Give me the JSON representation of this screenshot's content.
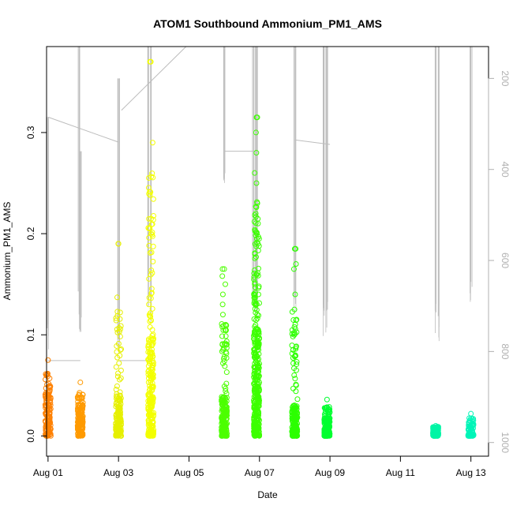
{
  "chart_data": {
    "type": "scatter",
    "title": "ATOM1 Southbound Ammonium_PM1_AMS",
    "xlabel": "Date",
    "ylabel": "Ammonium_PM1_AMS",
    "x_unit": "date (Aug 2016 flight days)",
    "xlim": [
      "2016-07-31T23:00",
      "2016-08-13T12:00"
    ],
    "ylim": [
      -0.02,
      0.385
    ],
    "x_ticks": [
      {
        "date": "2016-08-01",
        "label": "Aug 01"
      },
      {
        "date": "2016-08-03",
        "label": "Aug 03"
      },
      {
        "date": "2016-08-05",
        "label": "Aug 05"
      },
      {
        "date": "2016-08-07",
        "label": "Aug 07"
      },
      {
        "date": "2016-08-09",
        "label": "Aug 09"
      },
      {
        "date": "2016-08-11",
        "label": "Aug 11"
      },
      {
        "date": "2016-08-13",
        "label": "Aug 13"
      }
    ],
    "y_ticks": [
      {
        "value": 0.0,
        "label": "0.0"
      },
      {
        "value": 0.1,
        "label": "0.1"
      },
      {
        "value": 0.2,
        "label": "0.2"
      },
      {
        "value": 0.3,
        "label": "0.3"
      }
    ],
    "secondary_axis": {
      "side": "right",
      "description": "pressure (inverted)",
      "lim": [
        1030,
        130
      ],
      "ticks": [
        {
          "value": 200,
          "label": "200"
        },
        {
          "value": 400,
          "label": "400"
        },
        {
          "value": 600,
          "label": "600"
        },
        {
          "value": 800,
          "label": "800"
        },
        {
          "value": 1000,
          "label": "1000"
        }
      ],
      "color": "#b0b0b0"
    },
    "grid": false,
    "clusters": [
      {
        "x": "2016-08-01T00:00",
        "color": "#ff8000",
        "max": 0.075,
        "dense_to": 0.045,
        "n": 140
      },
      {
        "x": "2016-08-01T22:00",
        "color": "#ff9a00",
        "max": 0.053,
        "dense_to": 0.03,
        "n": 160
      },
      {
        "x": "2016-08-03T00:00",
        "color": "#e6f000",
        "max": 0.19,
        "dense_to": 0.04,
        "n": 160,
        "outliers": [
          0.19,
          0.137,
          0.085,
          0.072
        ]
      },
      {
        "x": "2016-08-03T22:00",
        "color": "#f3ff00",
        "max": 0.37,
        "dense_to": 0.1,
        "n": 260,
        "outliers": [
          0.37,
          0.29,
          0.205,
          0.2,
          0.13,
          0.105
        ]
      },
      {
        "x": "2016-08-06T00:00",
        "color": "#4cff00",
        "max": 0.165,
        "dense_to": 0.04,
        "n": 200,
        "outliers": [
          0.165,
          0.158,
          0.15,
          0.14,
          0.13,
          0.12,
          0.11,
          0.09,
          0.085
        ]
      },
      {
        "x": "2016-08-06T22:00",
        "color": "#3cff00",
        "max": 0.315,
        "dense_to": 0.11,
        "n": 360,
        "outliers": [
          0.315,
          0.3,
          0.28,
          0.26,
          0.25,
          0.23,
          0.22,
          0.21,
          0.2,
          0.19,
          0.18,
          0.16,
          0.15,
          0.14,
          0.13,
          0.12
        ]
      },
      {
        "x": "2016-08-08T00:00",
        "color": "#2cff00",
        "max": 0.185,
        "dense_to": 0.03,
        "n": 200,
        "outliers": [
          0.185,
          0.17,
          0.165,
          0.14,
          0.125,
          0.115,
          0.1,
          0.085,
          0.065,
          0.05
        ]
      },
      {
        "x": "2016-08-08T22:00",
        "color": "#00ff30",
        "max": 0.036,
        "dense_to": 0.018,
        "n": 200
      },
      {
        "x": "2016-08-12T00:00",
        "color": "#00f5a5",
        "max": 0.01,
        "dense_to": 0.008,
        "n": 140
      },
      {
        "x": "2016-08-13T00:00",
        "color": "#00f5b8",
        "max": 0.022,
        "dense_to": 0.012,
        "n": 80
      }
    ],
    "pressure_trace": {
      "color": "#bdbdbd",
      "spikes": [
        {
          "x": "2016-08-01T00:00",
          "low": 285,
          "high": 820
        },
        {
          "x": "2016-08-01T21:00",
          "low": 110,
          "high": 740
        },
        {
          "x": "2016-08-01T22:00",
          "low": 360,
          "high": 780
        },
        {
          "x": "2016-08-03T00:00",
          "low": 200,
          "high": 820
        },
        {
          "x": "2016-08-03T20:00",
          "low": 110,
          "high": 710
        },
        {
          "x": "2016-08-03T22:00",
          "low": 110,
          "high": 740
        },
        {
          "x": "2016-08-06T00:00",
          "low": 110,
          "high": 430
        },
        {
          "x": "2016-08-06T20:00",
          "low": 110,
          "high": 720
        },
        {
          "x": "2016-08-06T22:00",
          "low": 110,
          "high": 760
        },
        {
          "x": "2016-08-08T00:00",
          "low": 110,
          "high": 760
        },
        {
          "x": "2016-08-08T20:00",
          "low": 110,
          "high": 790
        },
        {
          "x": "2016-08-08T22:00",
          "low": 110,
          "high": 790
        },
        {
          "x": "2016-08-12T00:00",
          "low": 110,
          "high": 760
        },
        {
          "x": "2016-08-12T02:00",
          "low": 110,
          "high": 790
        },
        {
          "x": "2016-08-13T00:00",
          "low": 110,
          "high": 720
        }
      ],
      "connectors": [
        [
          [
            "2016-08-01T00:00",
            285
          ],
          [
            "2016-08-03T00:00",
            340
          ]
        ],
        [
          [
            "2016-08-01T00:00",
            820
          ],
          [
            "2016-08-01T22:00",
            820
          ]
        ],
        [
          [
            "2016-08-03T00:00",
            820
          ],
          [
            "2016-08-03T22:00",
            820
          ]
        ],
        [
          [
            "2016-08-03T02:00",
            270
          ],
          [
            "2016-08-04T22:00",
            110
          ]
        ],
        [
          [
            "2016-08-06T00:00",
            360
          ],
          [
            "2016-08-06T22:00",
            360
          ]
        ],
        [
          [
            "2016-08-08T00:00",
            335
          ],
          [
            "2016-08-09T00:00",
            345
          ]
        ]
      ]
    }
  }
}
